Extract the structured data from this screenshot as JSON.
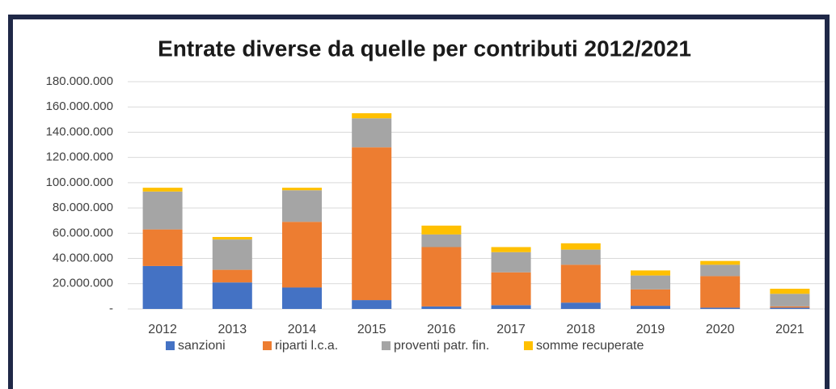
{
  "chart_data": {
    "type": "bar",
    "stacked": true,
    "title": "Entrate diverse da quelle per contributi 2012/2021",
    "categories": [
      "2012",
      "2013",
      "2014",
      "2015",
      "2016",
      "2017",
      "2018",
      "2019",
      "2020",
      "2021"
    ],
    "series": [
      {
        "name": "sanzioni",
        "color": "#4472c4",
        "values": [
          34000000,
          21000000,
          17000000,
          7000000,
          2000000,
          3000000,
          5000000,
          2500000,
          1000000,
          1000000
        ]
      },
      {
        "name": "riparti l.c.a.",
        "color": "#ed7d31",
        "values": [
          29000000,
          10000000,
          52000000,
          121000000,
          47000000,
          26000000,
          30000000,
          13000000,
          25000000,
          1000000
        ]
      },
      {
        "name": "proventi patr. fin.",
        "color": "#a5a5a5",
        "values": [
          30000000,
          24000000,
          25000000,
          23000000,
          10000000,
          16000000,
          12000000,
          11000000,
          9000000,
          10000000
        ]
      },
      {
        "name": "somme recuperate",
        "color": "#ffc000",
        "values": [
          3000000,
          2000000,
          2000000,
          4000000,
          7000000,
          4000000,
          5000000,
          4000000,
          3000000,
          4000000
        ]
      }
    ],
    "ylim": [
      0,
      180000000
    ],
    "yticks": [
      {
        "value": 0,
        "label": "-"
      },
      {
        "value": 20000000,
        "label": "20.000.000"
      },
      {
        "value": 40000000,
        "label": "40.000.000"
      },
      {
        "value": 60000000,
        "label": "60.000.000"
      },
      {
        "value": 80000000,
        "label": "80.000.000"
      },
      {
        "value": 100000000,
        "label": "100.000.000"
      },
      {
        "value": 120000000,
        "label": "120.000.000"
      },
      {
        "value": 140000000,
        "label": "140.000.000"
      },
      {
        "value": 160000000,
        "label": "160.000.000"
      },
      {
        "value": 180000000,
        "label": "180.000.000"
      }
    ],
    "grid": true,
    "legend": "bottom"
  }
}
